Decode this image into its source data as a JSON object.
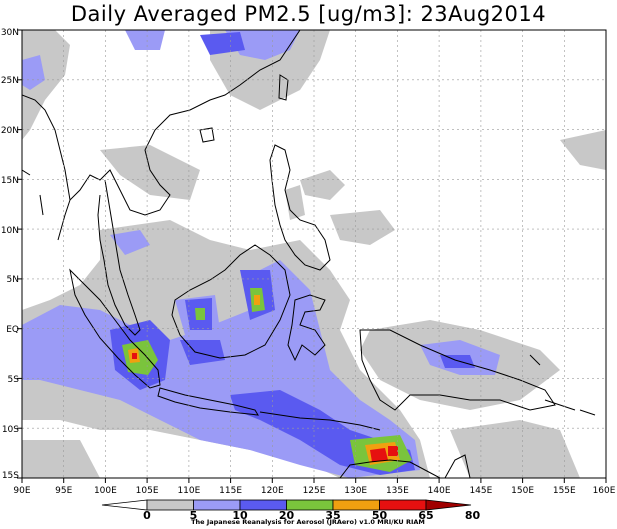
{
  "title": "Daily Averaged PM2.5 [ug/m3]: 23Aug2014",
  "credit": "The Japanese Reanalysis for Aerosol (JRAero) v1.0 MRI/KU RIAM",
  "lon_labels": [
    "90E",
    "95E",
    "100E",
    "105E",
    "110E",
    "115E",
    "120E",
    "125E",
    "130E",
    "135E",
    "140E",
    "145E",
    "150E",
    "155E",
    "160E"
  ],
  "lat_labels": [
    "30N",
    "25N",
    "20N",
    "15N",
    "10N",
    "5N",
    "EQ",
    "5S",
    "10S",
    "15S"
  ],
  "colorbar": {
    "ticks": [
      "0",
      "5",
      "10",
      "20",
      "35",
      "50",
      "65",
      "80"
    ],
    "colors": [
      "#ffffff",
      "#c8c8c8",
      "#9b9bf6",
      "#5a5af0",
      "#7ac43c",
      "#f0a010",
      "#e61010",
      "#a00000"
    ]
  }
}
